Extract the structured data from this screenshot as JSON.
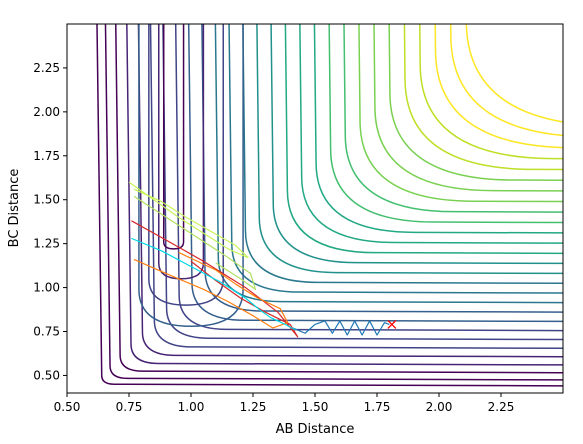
{
  "chart_data": {
    "type": "contour",
    "title": "",
    "xlabel": "AB Distance",
    "ylabel": "BC Distance",
    "xlim": [
      0.5,
      2.5
    ],
    "ylim": [
      0.4,
      2.5
    ],
    "xticks": [
      "0.50",
      "0.75",
      "1.00",
      "1.25",
      "1.50",
      "1.75",
      "2.00",
      "2.25"
    ],
    "yticks": [
      "0.50",
      "0.75",
      "1.00",
      "1.25",
      "1.50",
      "1.75",
      "2.00",
      "2.25"
    ],
    "grid": false,
    "legend": "none",
    "colormap": "viridis",
    "contour_colors": [
      "#440154",
      "#482475",
      "#414487",
      "#355f8d",
      "#2a788e",
      "#21918c",
      "#22a884",
      "#44bf70",
      "#7ad151",
      "#bddf26",
      "#fde725"
    ],
    "surface": {
      "note_free": true,
      "min_point": [
        0.74,
        0.74
      ],
      "barrier_level_region": [
        0.95,
        1.25
      ]
    },
    "trajectories": [
      {
        "color": "#1f77b4",
        "points": [
          [
            1.41,
            0.77
          ],
          [
            1.46,
            0.74
          ],
          [
            1.5,
            0.79
          ],
          [
            1.54,
            0.81
          ],
          [
            1.57,
            0.74
          ],
          [
            1.6,
            0.81
          ],
          [
            1.63,
            0.73
          ],
          [
            1.66,
            0.81
          ],
          [
            1.69,
            0.73
          ],
          [
            1.72,
            0.81
          ],
          [
            1.75,
            0.73
          ],
          [
            1.78,
            0.8
          ],
          [
            1.8,
            0.79
          ]
        ]
      },
      {
        "color": "#d62728",
        "points": [
          [
            0.76,
            1.38
          ],
          [
            0.9,
            1.27
          ],
          [
            1.05,
            1.15
          ],
          [
            1.22,
            1.0
          ],
          [
            1.35,
            0.86
          ],
          [
            1.43,
            0.72
          ],
          [
            1.4,
            0.79
          ],
          [
            1.3,
            0.86
          ],
          [
            1.2,
            0.94
          ],
          [
            1.1,
            1.04
          ],
          [
            1.0,
            1.15
          ]
        ]
      },
      {
        "color": "#ff7f0e",
        "points": [
          [
            0.77,
            1.16
          ],
          [
            0.9,
            1.08
          ],
          [
            1.05,
            0.99
          ],
          [
            1.15,
            0.92
          ],
          [
            1.25,
            0.84
          ],
          [
            1.33,
            0.77
          ],
          [
            1.39,
            0.8
          ],
          [
            1.36,
            0.88
          ],
          [
            1.27,
            0.94
          ],
          [
            1.18,
            1.02
          ],
          [
            1.1,
            1.1
          ],
          [
            0.95,
            1.2
          ]
        ]
      },
      {
        "color": "#00d8e6",
        "points": [
          [
            0.76,
            1.28
          ],
          [
            0.88,
            1.21
          ],
          [
            1.0,
            1.12
          ],
          [
            1.12,
            1.03
          ],
          [
            1.22,
            0.94
          ],
          [
            1.28,
            0.87
          ],
          [
            1.32,
            0.83
          ],
          [
            1.38,
            0.79
          ],
          [
            1.42,
            0.76
          ]
        ]
      },
      {
        "color": "#c7f35a",
        "points": [
          [
            0.75,
            1.6
          ],
          [
            0.85,
            1.5
          ],
          [
            0.95,
            1.4
          ],
          [
            1.05,
            1.31
          ],
          [
            1.15,
            1.22
          ],
          [
            1.23,
            1.17
          ],
          [
            1.18,
            1.24
          ],
          [
            1.08,
            1.32
          ],
          [
            0.98,
            1.4
          ],
          [
            0.88,
            1.49
          ],
          [
            0.77,
            1.56
          ]
        ]
      },
      {
        "color": "#b0e060",
        "points": [
          [
            0.77,
            1.52
          ],
          [
            0.9,
            1.4
          ],
          [
            1.02,
            1.29
          ],
          [
            1.14,
            1.18
          ],
          [
            1.24,
            1.08
          ],
          [
            1.26,
            0.99
          ],
          [
            1.2,
            1.05
          ],
          [
            1.1,
            1.14
          ]
        ]
      }
    ],
    "end_marker": {
      "x": 1.81,
      "y": 0.79,
      "symbol": "x",
      "color": "#ff0000"
    }
  }
}
